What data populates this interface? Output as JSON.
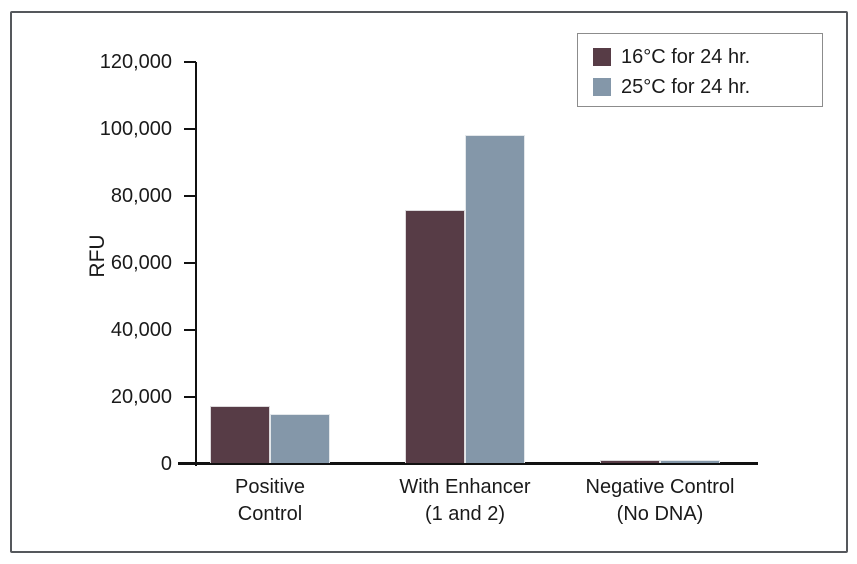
{
  "figure": {
    "frame_border_color": "#55585c",
    "background": "#ffffff",
    "text_color": "#1a1a1a"
  },
  "chart_data": {
    "type": "bar",
    "title": "",
    "xlabel": "",
    "ylabel": "RFU",
    "ylim": [
      0,
      120000
    ],
    "grid": false,
    "legend_position": "top-right",
    "categories": [
      "Positive Control",
      "With Enhancer (1 and 2)",
      "Negative Control (No DNA)"
    ],
    "category_display": [
      "Positive\nControl",
      "With Enhancer\n(1 and 2)",
      "Negative Control\n(No DNA)"
    ],
    "series": [
      {
        "name": "16°C for 24 hr.",
        "color": "#573C46",
        "values": [
          17000,
          75500,
          1000
        ]
      },
      {
        "name": "25°C for 24 hr.",
        "color": "#8497A9",
        "values": [
          14500,
          98000,
          1000
        ]
      }
    ],
    "y_ticks": [
      {
        "value": 0,
        "label": "0"
      },
      {
        "value": 20000,
        "label": "20,000"
      },
      {
        "value": 40000,
        "label": "40,000"
      },
      {
        "value": 60000,
        "label": "60,000"
      },
      {
        "value": 80000,
        "label": "80,000"
      },
      {
        "value": 100000,
        "label": "100,000"
      },
      {
        "value": 120000,
        "label": "120,000"
      }
    ]
  }
}
